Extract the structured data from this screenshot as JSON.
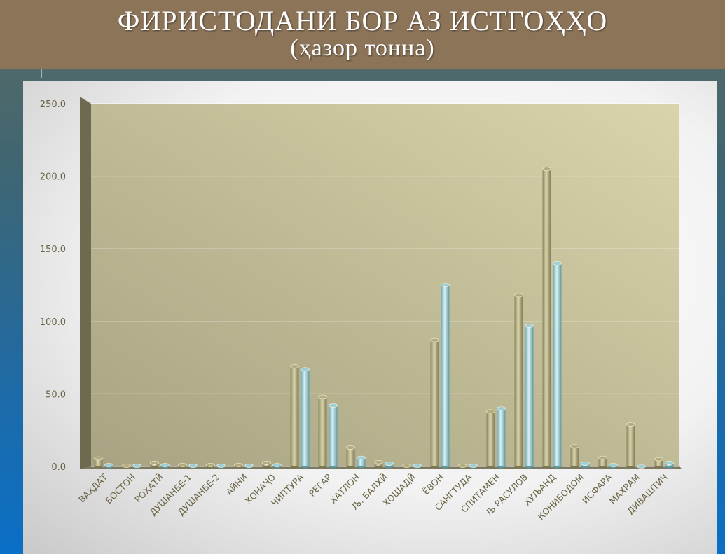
{
  "header": {
    "title": "ФИРИСТОДАНИ БОР АЗ ИСТГОҲҲО",
    "subtitle": "(ҳазор тонна)"
  },
  "colors": {
    "header_bg": "#8c7459",
    "plot_bg": "#c5c09a",
    "series1": "#b3ad7e",
    "series2": "#9fcfd6",
    "axis_text": "#6b6446"
  },
  "chart_data": {
    "type": "bar",
    "title": "ФИРИСТОДАНИ БОР АЗ ИСТГОҲҲО",
    "subtitle": "(ҳазор тонна)",
    "xlabel": "",
    "ylabel": "",
    "ylim": [
      0,
      250
    ],
    "yticks": [
      "0.0",
      "50.0",
      "100.0",
      "150.0",
      "200.0",
      "250.0"
    ],
    "grid": true,
    "legend": "none",
    "categories": [
      "ВАҲДАТ",
      "БОСТОН",
      "РОҲАТӢ",
      "ДУШАНБЕ-1",
      "ДУШАНБЕ-2",
      "АЙНИ",
      "ХОНАҶО",
      "ЧИПТУРА",
      "РЕГАР",
      "ХАТЛОН",
      " Љ. БАЛХӢ",
      "ХОШАДӢ",
      "ЁВОН",
      "САНГТУДА",
      "СПИТАМЕН",
      "Љ.РАСУЛОВ",
      "ХУЉАНД",
      "КОНИБОДОМ",
      "ИСФАРА",
      "МАХРАМ",
      "ДИВАШТИЧ"
    ],
    "series": [
      {
        "values": [
          5.5,
          0.5,
          2.5,
          1.0,
          1.0,
          1.0,
          2.5,
          69,
          48,
          13,
          3,
          0.5,
          87,
          0.5,
          38,
          118,
          205,
          14,
          6,
          29,
          5
        ]
      },
      {
        "values": [
          1.0,
          0.5,
          1.0,
          0.5,
          0.5,
          0.5,
          1.0,
          67,
          42,
          6,
          2,
          0.5,
          125,
          0.5,
          40,
          97,
          140,
          2,
          1,
          0.0,
          2.5
        ]
      }
    ]
  }
}
